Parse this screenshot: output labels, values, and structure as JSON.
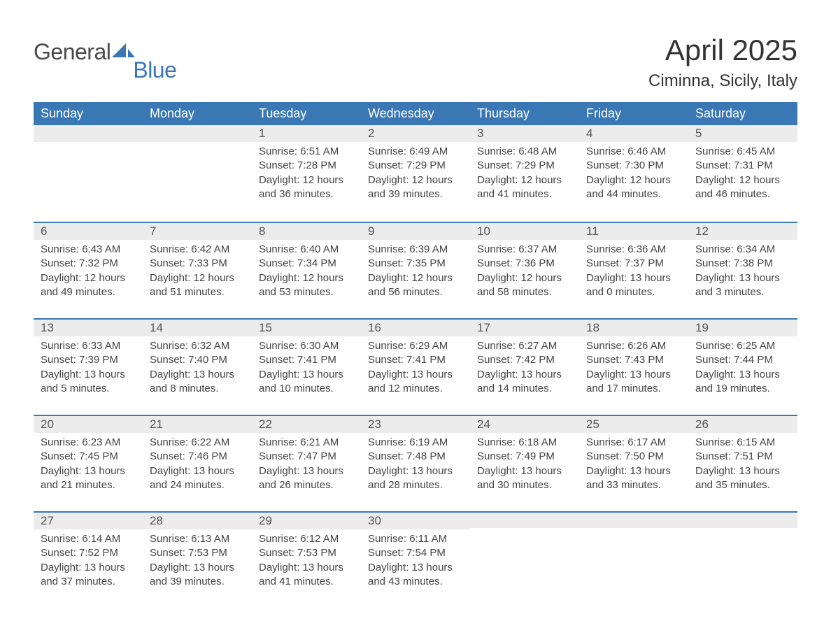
{
  "logo": {
    "word1": "General",
    "word2": "Blue",
    "shape_color": "#3a78b5"
  },
  "title": "April 2025",
  "location": "Ciminna, Sicily, Italy",
  "colors": {
    "header_bg": "#3a78b5",
    "header_fg": "#ffffff",
    "daynum_bg": "#ececec",
    "rule": "#3a78b5",
    "text": "#444444"
  },
  "weekdays": [
    "Sunday",
    "Monday",
    "Tuesday",
    "Wednesday",
    "Thursday",
    "Friday",
    "Saturday"
  ],
  "weeks": [
    [
      {
        "day": "",
        "sunrise": "",
        "sunset": "",
        "daylight": ""
      },
      {
        "day": "",
        "sunrise": "",
        "sunset": "",
        "daylight": ""
      },
      {
        "day": "1",
        "sunrise": "Sunrise: 6:51 AM",
        "sunset": "Sunset: 7:28 PM",
        "daylight": "Daylight: 12 hours and 36 minutes."
      },
      {
        "day": "2",
        "sunrise": "Sunrise: 6:49 AM",
        "sunset": "Sunset: 7:29 PM",
        "daylight": "Daylight: 12 hours and 39 minutes."
      },
      {
        "day": "3",
        "sunrise": "Sunrise: 6:48 AM",
        "sunset": "Sunset: 7:29 PM",
        "daylight": "Daylight: 12 hours and 41 minutes."
      },
      {
        "day": "4",
        "sunrise": "Sunrise: 6:46 AM",
        "sunset": "Sunset: 7:30 PM",
        "daylight": "Daylight: 12 hours and 44 minutes."
      },
      {
        "day": "5",
        "sunrise": "Sunrise: 6:45 AM",
        "sunset": "Sunset: 7:31 PM",
        "daylight": "Daylight: 12 hours and 46 minutes."
      }
    ],
    [
      {
        "day": "6",
        "sunrise": "Sunrise: 6:43 AM",
        "sunset": "Sunset: 7:32 PM",
        "daylight": "Daylight: 12 hours and 49 minutes."
      },
      {
        "day": "7",
        "sunrise": "Sunrise: 6:42 AM",
        "sunset": "Sunset: 7:33 PM",
        "daylight": "Daylight: 12 hours and 51 minutes."
      },
      {
        "day": "8",
        "sunrise": "Sunrise: 6:40 AM",
        "sunset": "Sunset: 7:34 PM",
        "daylight": "Daylight: 12 hours and 53 minutes."
      },
      {
        "day": "9",
        "sunrise": "Sunrise: 6:39 AM",
        "sunset": "Sunset: 7:35 PM",
        "daylight": "Daylight: 12 hours and 56 minutes."
      },
      {
        "day": "10",
        "sunrise": "Sunrise: 6:37 AM",
        "sunset": "Sunset: 7:36 PM",
        "daylight": "Daylight: 12 hours and 58 minutes."
      },
      {
        "day": "11",
        "sunrise": "Sunrise: 6:36 AM",
        "sunset": "Sunset: 7:37 PM",
        "daylight": "Daylight: 13 hours and 0 minutes."
      },
      {
        "day": "12",
        "sunrise": "Sunrise: 6:34 AM",
        "sunset": "Sunset: 7:38 PM",
        "daylight": "Daylight: 13 hours and 3 minutes."
      }
    ],
    [
      {
        "day": "13",
        "sunrise": "Sunrise: 6:33 AM",
        "sunset": "Sunset: 7:39 PM",
        "daylight": "Daylight: 13 hours and 5 minutes."
      },
      {
        "day": "14",
        "sunrise": "Sunrise: 6:32 AM",
        "sunset": "Sunset: 7:40 PM",
        "daylight": "Daylight: 13 hours and 8 minutes."
      },
      {
        "day": "15",
        "sunrise": "Sunrise: 6:30 AM",
        "sunset": "Sunset: 7:41 PM",
        "daylight": "Daylight: 13 hours and 10 minutes."
      },
      {
        "day": "16",
        "sunrise": "Sunrise: 6:29 AM",
        "sunset": "Sunset: 7:41 PM",
        "daylight": "Daylight: 13 hours and 12 minutes."
      },
      {
        "day": "17",
        "sunrise": "Sunrise: 6:27 AM",
        "sunset": "Sunset: 7:42 PM",
        "daylight": "Daylight: 13 hours and 14 minutes."
      },
      {
        "day": "18",
        "sunrise": "Sunrise: 6:26 AM",
        "sunset": "Sunset: 7:43 PM",
        "daylight": "Daylight: 13 hours and 17 minutes."
      },
      {
        "day": "19",
        "sunrise": "Sunrise: 6:25 AM",
        "sunset": "Sunset: 7:44 PM",
        "daylight": "Daylight: 13 hours and 19 minutes."
      }
    ],
    [
      {
        "day": "20",
        "sunrise": "Sunrise: 6:23 AM",
        "sunset": "Sunset: 7:45 PM",
        "daylight": "Daylight: 13 hours and 21 minutes."
      },
      {
        "day": "21",
        "sunrise": "Sunrise: 6:22 AM",
        "sunset": "Sunset: 7:46 PM",
        "daylight": "Daylight: 13 hours and 24 minutes."
      },
      {
        "day": "22",
        "sunrise": "Sunrise: 6:21 AM",
        "sunset": "Sunset: 7:47 PM",
        "daylight": "Daylight: 13 hours and 26 minutes."
      },
      {
        "day": "23",
        "sunrise": "Sunrise: 6:19 AM",
        "sunset": "Sunset: 7:48 PM",
        "daylight": "Daylight: 13 hours and 28 minutes."
      },
      {
        "day": "24",
        "sunrise": "Sunrise: 6:18 AM",
        "sunset": "Sunset: 7:49 PM",
        "daylight": "Daylight: 13 hours and 30 minutes."
      },
      {
        "day": "25",
        "sunrise": "Sunrise: 6:17 AM",
        "sunset": "Sunset: 7:50 PM",
        "daylight": "Daylight: 13 hours and 33 minutes."
      },
      {
        "day": "26",
        "sunrise": "Sunrise: 6:15 AM",
        "sunset": "Sunset: 7:51 PM",
        "daylight": "Daylight: 13 hours and 35 minutes."
      }
    ],
    [
      {
        "day": "27",
        "sunrise": "Sunrise: 6:14 AM",
        "sunset": "Sunset: 7:52 PM",
        "daylight": "Daylight: 13 hours and 37 minutes."
      },
      {
        "day": "28",
        "sunrise": "Sunrise: 6:13 AM",
        "sunset": "Sunset: 7:53 PM",
        "daylight": "Daylight: 13 hours and 39 minutes."
      },
      {
        "day": "29",
        "sunrise": "Sunrise: 6:12 AM",
        "sunset": "Sunset: 7:53 PM",
        "daylight": "Daylight: 13 hours and 41 minutes."
      },
      {
        "day": "30",
        "sunrise": "Sunrise: 6:11 AM",
        "sunset": "Sunset: 7:54 PM",
        "daylight": "Daylight: 13 hours and 43 minutes."
      },
      {
        "day": "",
        "sunrise": "",
        "sunset": "",
        "daylight": ""
      },
      {
        "day": "",
        "sunrise": "",
        "sunset": "",
        "daylight": ""
      },
      {
        "day": "",
        "sunrise": "",
        "sunset": "",
        "daylight": ""
      }
    ]
  ]
}
